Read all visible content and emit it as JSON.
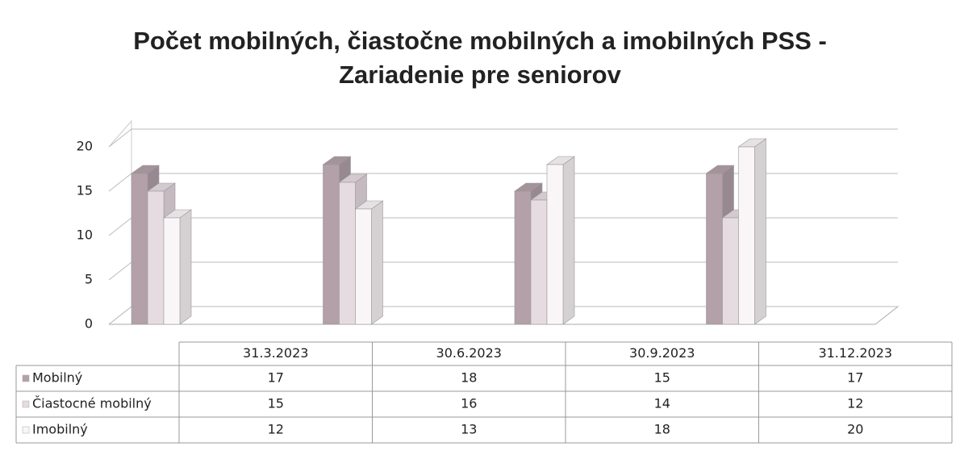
{
  "chart_data": {
    "type": "bar3d",
    "title": "Počet mobilných, čiastočne mobilných a imobilných PSS -\nZariadenie pre seniorov",
    "categories": [
      "31.3.2023",
      "30.6.2023",
      "30.9.2023",
      "31.12.2023"
    ],
    "series": [
      {
        "name": "Mobilný",
        "color": "#b3a0a9",
        "values": [
          17,
          18,
          15,
          17
        ]
      },
      {
        "name": "Čiastocné mobilný",
        "color": "#e6dbe1",
        "values": [
          15,
          16,
          14,
          12
        ]
      },
      {
        "name": "Imobilný",
        "color": "#faf6f8",
        "values": [
          12,
          13,
          18,
          20
        ]
      }
    ],
    "ylim": [
      0,
      20
    ],
    "yticks": [
      0,
      5,
      10,
      15,
      20
    ],
    "grid": true
  }
}
